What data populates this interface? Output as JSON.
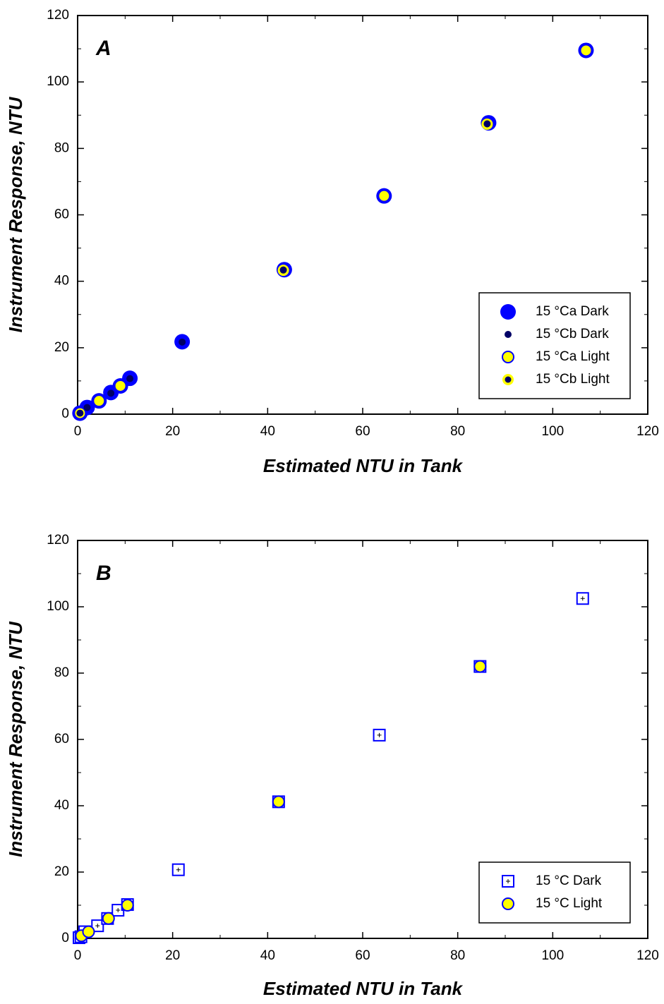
{
  "chart_data": [
    {
      "type": "scatter",
      "annotation": "A",
      "xlabel": "Estimated NTU in Tank",
      "ylabel": "Instrument Response, NTU",
      "xlim": [
        0,
        120
      ],
      "ylim": [
        0,
        120
      ],
      "xticks": [
        0,
        20,
        40,
        60,
        80,
        100,
        120
      ],
      "yticks": [
        0,
        20,
        40,
        60,
        80,
        100,
        120
      ],
      "legend": "lower right",
      "series": [
        {
          "name": "15 °Ca Dark",
          "marker": "circle",
          "color": "#0000ff",
          "x": [
            0.5,
            2,
            4.5,
            7,
            9,
            11,
            22,
            43.5,
            64.5,
            86.5,
            107
          ],
          "values": [
            0.3,
            2,
            4,
            6.5,
            8.5,
            10.8,
            21.8,
            43.5,
            65.7,
            87.7,
            109.5
          ]
        },
        {
          "name": "15 °Cb Dark",
          "marker": "dot",
          "color": "#000066",
          "x": [
            0.5,
            2,
            7,
            11,
            22,
            43.3,
            86.2
          ],
          "values": [
            0.3,
            2,
            6.3,
            10.7,
            21.7,
            43.4,
            87.4
          ]
        },
        {
          "name": "15 °Ca Light",
          "marker": "ring",
          "color": "#0000ff",
          "fill": "#ffff00",
          "x": [
            0.5,
            4.5,
            9,
            64.5,
            107
          ],
          "values": [
            0.3,
            4,
            8.5,
            65.7,
            109.5
          ]
        },
        {
          "name": "15 °Cb Light",
          "marker": "ring-dot",
          "color": "#000066",
          "fill": "#ffff00",
          "x": [
            43.3,
            86.2
          ],
          "values": [
            43.3,
            87.3
          ]
        }
      ]
    },
    {
      "type": "scatter",
      "annotation": "B",
      "xlabel": "Estimated NTU in Tank",
      "ylabel": "Instrument Response, NTU",
      "xlim": [
        0,
        120
      ],
      "ylim": [
        0,
        120
      ],
      "xticks": [
        0,
        20,
        40,
        60,
        80,
        100,
        120
      ],
      "yticks": [
        0,
        20,
        40,
        60,
        80,
        100,
        120
      ],
      "legend": "lower right",
      "series": [
        {
          "name": "15 °C Dark",
          "marker": "square",
          "color": "#0000ff",
          "x": [
            0.3,
            0.7,
            1.5,
            4.2,
            6.3,
            8.5,
            10.5,
            21.2,
            42.3,
            63.5,
            84.7,
            106.3
          ],
          "values": [
            0.2,
            0.5,
            2,
            3.8,
            6,
            8.5,
            10.2,
            20.7,
            41.2,
            61.3,
            82,
            102.5
          ]
        },
        {
          "name": "15 °C Light",
          "marker": "ring",
          "color": "#0000ff",
          "fill": "#ffff00",
          "x": [
            0.8,
            2.3,
            6.5,
            10.5,
            42.3,
            84.7
          ],
          "values": [
            0.8,
            2,
            6,
            10,
            41.2,
            82
          ]
        }
      ]
    }
  ]
}
